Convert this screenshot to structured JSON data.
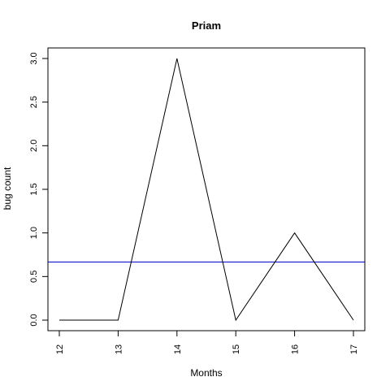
{
  "chart_data": {
    "type": "line",
    "title": "Priam",
    "xlabel": "Months",
    "ylabel": "bug count",
    "x": [
      12,
      13,
      14,
      15,
      16,
      17
    ],
    "series": [
      {
        "name": "bug count",
        "values": [
          0,
          0,
          3,
          0,
          1,
          0
        ],
        "color": "#000000"
      }
    ],
    "reference_line": {
      "y": 0.6667,
      "color": "#0000CC"
    },
    "xlim": [
      12,
      17
    ],
    "ylim": [
      0,
      3
    ],
    "x_ticks": [
      12,
      13,
      14,
      15,
      16,
      17
    ],
    "x_tick_labels": [
      "12",
      "13",
      "14",
      "15",
      "16",
      "17"
    ],
    "y_ticks": [
      0,
      0.5,
      1,
      1.5,
      2,
      2.5,
      3
    ],
    "y_tick_labels": [
      "0.0",
      "0.5",
      "1.0",
      "1.5",
      "2.0",
      "2.5",
      "3.0"
    ],
    "grid": false,
    "legend": "none"
  }
}
